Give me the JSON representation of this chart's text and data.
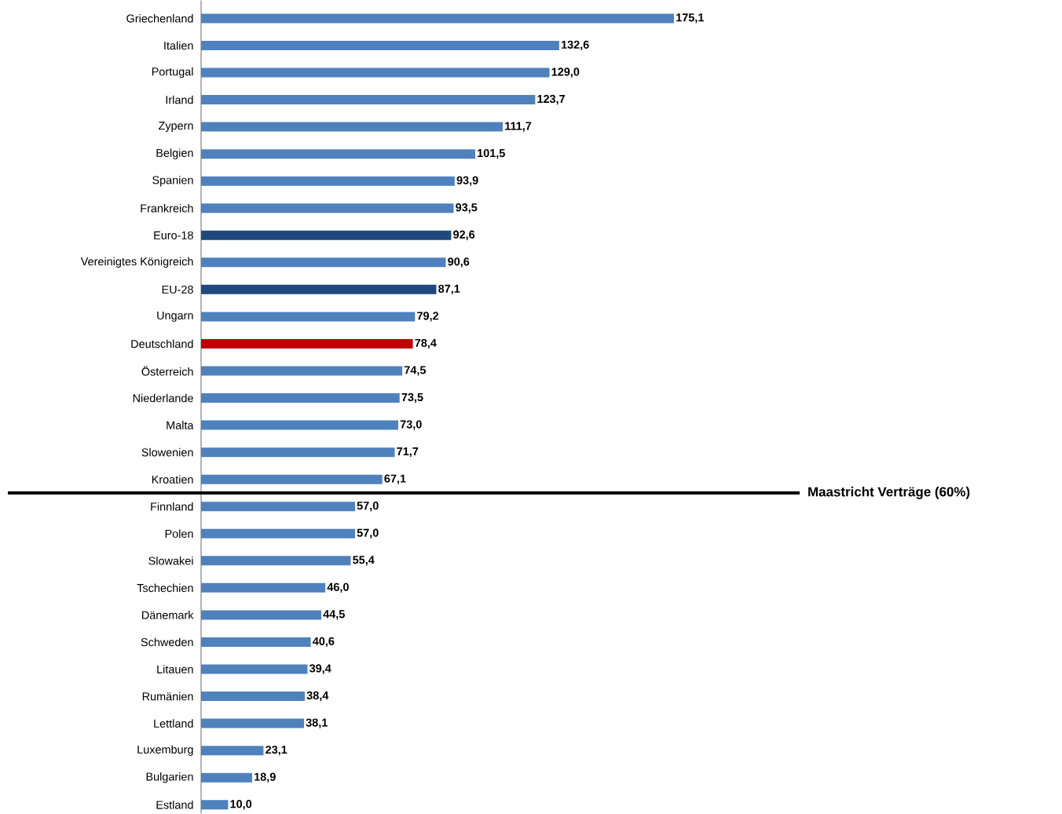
{
  "chart_data": {
    "type": "bar",
    "orientation": "horizontal",
    "categories": [
      "Griechenland",
      "Italien",
      "Portugal",
      "Irland",
      "Zypern",
      "Belgien",
      "Spanien",
      "Frankreich",
      "Euro-18",
      "Vereinigtes Königreich",
      "EU-28",
      "Ungarn",
      "Deutschland",
      "Österreich",
      "Niederlande",
      "Malta",
      "Slowenien",
      "Kroatien",
      "Finnland",
      "Polen",
      "Slowakei",
      "Tschechien",
      "Dänemark",
      "Schweden",
      "Litauen",
      "Rumänien",
      "Lettland",
      "Luxemburg",
      "Bulgarien",
      "Estland"
    ],
    "values": [
      175.1,
      132.6,
      129.0,
      123.7,
      111.7,
      101.5,
      93.9,
      93.5,
      92.6,
      90.6,
      87.1,
      79.2,
      78.4,
      74.5,
      73.5,
      73.0,
      71.7,
      67.1,
      57.0,
      57.0,
      55.4,
      46.0,
      44.5,
      40.6,
      39.4,
      38.4,
      38.1,
      23.1,
      18.9,
      10.0
    ],
    "value_labels": [
      "175,1",
      "132,6",
      "129,0",
      "123,7",
      "111,7",
      "101,5",
      "93,9",
      "93,5",
      "92,6",
      "90,6",
      "87,1",
      "79,2",
      "78,4",
      "74,5",
      "73,5",
      "73,0",
      "71,7",
      "67,1",
      "57,0",
      "57,0",
      "55,4",
      "46,0",
      "44,5",
      "40,6",
      "39,4",
      "38,4",
      "38,1",
      "23,1",
      "18,9",
      "10,0"
    ],
    "colors": [
      "#4f81bd",
      "#4f81bd",
      "#4f81bd",
      "#4f81bd",
      "#4f81bd",
      "#4f81bd",
      "#4f81bd",
      "#4f81bd",
      "#1f497d",
      "#4f81bd",
      "#1f497d",
      "#4f81bd",
      "#c00000",
      "#4f81bd",
      "#4f81bd",
      "#4f81bd",
      "#4f81bd",
      "#4f81bd",
      "#4f81bd",
      "#4f81bd",
      "#4f81bd",
      "#4f81bd",
      "#4f81bd",
      "#4f81bd",
      "#4f81bd",
      "#4f81bd",
      "#4f81bd",
      "#4f81bd",
      "#4f81bd",
      "#4f81bd"
    ],
    "annotations": [
      "Maastricht Verträge (60%)"
    ]
  }
}
